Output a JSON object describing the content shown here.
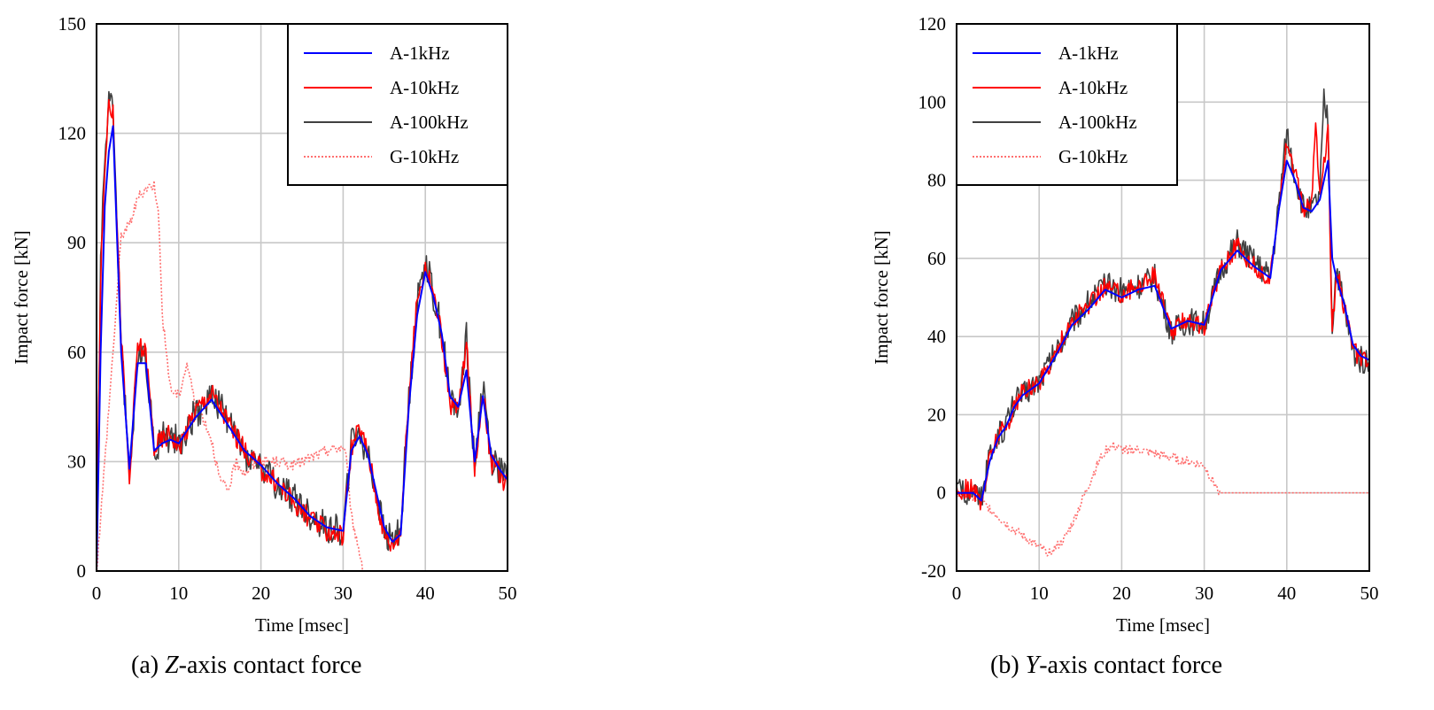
{
  "chart_data": [
    {
      "type": "line",
      "caption": {
        "prefix": "(a) ",
        "axis": "Z",
        "suffix": "-axis contact force"
      },
      "xlabel": "Time [msec]",
      "ylabel": "Impact force [kN]",
      "xlim": [
        0,
        50
      ],
      "ylim": [
        0,
        150
      ],
      "xticks": [
        0,
        10,
        20,
        30,
        40,
        50
      ],
      "yticks": [
        0,
        30,
        60,
        90,
        120,
        150
      ],
      "grid": true,
      "legend_position": "top-right",
      "series": [
        {
          "name": "A-1kHz",
          "color": "#0000ff",
          "style": "solid",
          "noise": 0,
          "x": [
            0,
            0.5,
            1,
            1.5,
            2,
            3,
            4,
            5,
            6,
            7,
            8,
            9,
            10,
            12,
            14,
            16,
            18,
            20,
            22,
            24,
            26,
            28,
            30,
            31,
            32,
            33,
            34,
            35,
            36,
            37,
            38,
            39,
            40,
            41,
            42,
            43,
            44,
            45,
            46,
            47,
            48,
            49,
            50
          ],
          "y": [
            0,
            60,
            100,
            115,
            122,
            60,
            28,
            57,
            57,
            33,
            35,
            36,
            35,
            42,
            47,
            40,
            33,
            29,
            24,
            20,
            15,
            12,
            11,
            33,
            37,
            32,
            22,
            12,
            8,
            10,
            45,
            70,
            82,
            75,
            65,
            48,
            45,
            55,
            30,
            48,
            32,
            28,
            25
          ]
        },
        {
          "name": "A-10kHz",
          "color": "#ff0000",
          "style": "solid",
          "noise": 3,
          "x": [
            0,
            0.5,
            1,
            1.5,
            2,
            3,
            4,
            5,
            6,
            7,
            8,
            9,
            10,
            12,
            14,
            16,
            18,
            20,
            22,
            24,
            26,
            28,
            30,
            31,
            32,
            33,
            34,
            35,
            36,
            37,
            38,
            39,
            40,
            41,
            42,
            43,
            44,
            45,
            46,
            47,
            48,
            49,
            50
          ],
          "y": [
            0,
            80,
            110,
            130,
            125,
            65,
            24,
            62,
            60,
            34,
            36,
            38,
            34,
            44,
            49,
            41,
            33,
            28,
            24,
            19,
            14,
            11,
            10,
            34,
            39,
            33,
            21,
            10,
            7,
            11,
            48,
            74,
            84,
            76,
            64,
            46,
            44,
            62,
            28,
            50,
            30,
            27,
            23
          ]
        },
        {
          "name": "A-100kHz",
          "color": "#404040",
          "style": "solid",
          "noise": 4.5,
          "x": [
            0,
            0.5,
            1,
            1.5,
            2,
            3,
            4,
            5,
            6,
            7,
            8,
            9,
            10,
            12,
            14,
            16,
            18,
            20,
            22,
            24,
            26,
            28,
            30,
            31,
            32,
            33,
            34,
            35,
            36,
            37,
            38,
            39,
            40,
            41,
            42,
            43,
            44,
            45,
            46,
            47,
            48,
            49,
            50
          ],
          "y": [
            0,
            85,
            112,
            133,
            124,
            63,
            25,
            60,
            59,
            33,
            37,
            37,
            35,
            43,
            48,
            42,
            32,
            29,
            23,
            20,
            15,
            12,
            11,
            35,
            38,
            32,
            22,
            10,
            8,
            12,
            47,
            73,
            86,
            75,
            66,
            47,
            45,
            65,
            29,
            52,
            31,
            28,
            24
          ]
        },
        {
          "name": "G-10kHz",
          "color": "#ff7070",
          "style": "dotted",
          "noise": 1.5,
          "x": [
            0,
            0.5,
            1,
            2,
            3,
            4,
            5,
            6,
            7,
            7.5,
            8,
            9,
            10,
            11,
            12,
            13,
            14,
            15,
            16,
            17,
            18,
            20,
            22,
            24,
            26,
            28,
            30,
            30.5,
            31,
            32,
            32.5,
            33,
            40,
            50
          ],
          "y": [
            0,
            15,
            30,
            60,
            92,
            95,
            102,
            105,
            106,
            100,
            70,
            50,
            48,
            57,
            46,
            42,
            36,
            25,
            22,
            30,
            27,
            30,
            30,
            29,
            31,
            33,
            34,
            30,
            15,
            5,
            0,
            0,
            0,
            0
          ]
        }
      ]
    },
    {
      "type": "line",
      "caption": {
        "prefix": "(b) ",
        "axis": "Y",
        "suffix": "-axis contact force"
      },
      "xlabel": "Time [msec]",
      "ylabel": "Impact force [kN]",
      "xlim": [
        0,
        50
      ],
      "ylim": [
        -20,
        120
      ],
      "xticks": [
        0,
        10,
        20,
        30,
        40,
        50
      ],
      "yticks": [
        -20,
        0,
        20,
        40,
        60,
        80,
        100,
        120
      ],
      "grid": true,
      "legend_position": "top-left",
      "series": [
        {
          "name": "A-1kHz",
          "color": "#0000ff",
          "style": "solid",
          "noise": 0,
          "x": [
            0,
            1,
            2,
            3,
            4,
            5,
            6,
            7,
            8,
            10,
            12,
            14,
            16,
            18,
            20,
            22,
            24,
            26,
            28,
            30,
            32,
            34,
            36,
            38,
            39,
            40,
            41,
            42,
            43,
            44,
            45,
            45.5,
            46,
            47,
            48,
            49,
            50
          ],
          "y": [
            0,
            0,
            0,
            -2,
            8,
            14,
            17,
            22,
            25,
            28,
            35,
            43,
            47,
            52,
            50,
            52,
            53,
            42,
            44,
            43,
            57,
            62,
            58,
            55,
            72,
            85,
            80,
            73,
            72,
            75,
            85,
            60,
            55,
            48,
            38,
            35,
            34
          ]
        },
        {
          "name": "A-10kHz",
          "color": "#ff0000",
          "style": "solid",
          "noise": 2.5,
          "x": [
            0,
            1,
            2,
            3,
            4,
            5,
            6,
            7,
            8,
            10,
            12,
            14,
            16,
            18,
            20,
            22,
            24,
            26,
            28,
            30,
            32,
            34,
            36,
            38,
            39,
            40,
            41,
            42,
            43,
            43.5,
            44,
            45,
            45.5,
            46,
            47,
            48,
            49,
            50
          ],
          "y": [
            0,
            1,
            1,
            -3,
            9,
            15,
            17,
            22,
            26,
            28,
            36,
            44,
            48,
            53,
            51,
            53,
            56,
            41,
            45,
            42,
            58,
            63,
            58,
            54,
            74,
            90,
            82,
            72,
            74,
            95,
            76,
            92,
            40,
            58,
            47,
            37,
            34,
            33
          ]
        },
        {
          "name": "A-100kHz",
          "color": "#404040",
          "style": "solid",
          "noise": 3.5,
          "x": [
            0,
            1,
            2,
            3,
            4,
            5,
            6,
            7,
            8,
            10,
            12,
            14,
            16,
            18,
            20,
            22,
            24,
            26,
            28,
            30,
            32,
            34,
            36,
            38,
            39,
            40,
            41,
            42,
            43,
            44,
            44.5,
            45,
            45.5,
            46,
            47,
            48,
            49,
            50
          ],
          "y": [
            0,
            0,
            2,
            -2,
            9,
            14,
            18,
            23,
            25,
            29,
            36,
            44,
            49,
            53,
            52,
            53,
            55,
            41,
            44,
            43,
            57,
            64,
            59,
            55,
            73,
            92,
            81,
            73,
            72,
            76,
            100,
            95,
            42,
            58,
            47,
            36,
            34,
            33
          ]
        },
        {
          "name": "G-10kHz",
          "color": "#ff7070",
          "style": "dotted",
          "noise": 1.2,
          "x": [
            0,
            2,
            4,
            6,
            8,
            10,
            11,
            12,
            13,
            14,
            15,
            16,
            17,
            18,
            19,
            20,
            22,
            24,
            26,
            28,
            30,
            31,
            32,
            33,
            40,
            50
          ],
          "y": [
            0,
            -1,
            -4,
            -8,
            -11,
            -14,
            -15,
            -14,
            -12,
            -8,
            -3,
            2,
            7,
            11,
            12,
            11,
            11,
            10,
            9,
            8,
            7,
            3,
            0,
            0,
            0,
            0
          ]
        }
      ]
    }
  ]
}
